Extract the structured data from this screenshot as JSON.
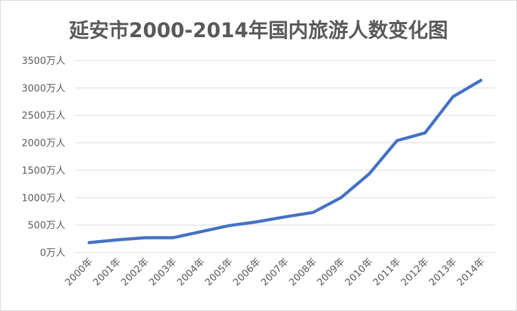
{
  "chart_data": {
    "type": "line",
    "title": "延安市2000-2014年国内旅游人数变化图",
    "xlabel": "",
    "ylabel": "",
    "categories": [
      "2000年",
      "2001年",
      "2002年",
      "2003年",
      "2004年",
      "2005年",
      "2006年",
      "2007年",
      "2008年",
      "2009年",
      "2010年",
      "2011年",
      "2012年",
      "2013年",
      "2014年"
    ],
    "series": [
      {
        "values": [
          180,
          230,
          270,
          270,
          380,
          490,
          560,
          650,
          730,
          1000,
          1430,
          2040,
          2180,
          2840,
          3140
        ]
      }
    ],
    "yticks": [
      "0万人",
      "500万人",
      "1000万人",
      "1500万人",
      "2000万人",
      "2500万人",
      "3000万人",
      "3500万人"
    ],
    "ylim": [
      0,
      3500
    ],
    "grid": true,
    "legend": "none",
    "colors": {
      "line": "#4472c4",
      "grid": "#d9d9d9",
      "text": "#595959"
    }
  }
}
